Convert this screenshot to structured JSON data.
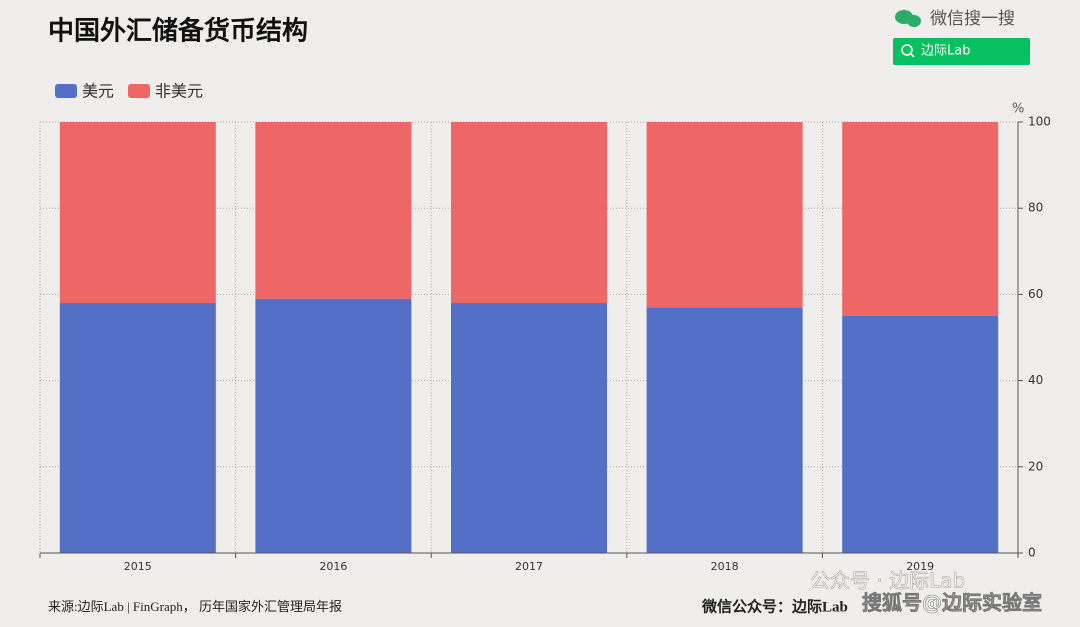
{
  "chart_data": {
    "type": "bar",
    "stacked": true,
    "title": "中国外汇储备货币结构",
    "categories": [
      "2015",
      "2016",
      "2017",
      "2018",
      "2019"
    ],
    "series": [
      {
        "name": "美元",
        "color": "#5470c6",
        "values": [
          58,
          59,
          58,
          57,
          55
        ]
      },
      {
        "name": "非美元",
        "color": "#ee6666",
        "values": [
          42,
          41,
          42,
          43,
          45
        ]
      }
    ],
    "y_unit": "%",
    "ylim": [
      0,
      100
    ],
    "yticks": [
      0,
      20,
      40,
      60,
      80,
      100
    ],
    "grid": true,
    "legend": "top-left"
  },
  "header": {
    "search_text": "微信搜一搜",
    "search_button": "边际Lab"
  },
  "footer": {
    "source": "来源:边际Lab | FinGraph， 历年国家外汇管理局年报",
    "account": "微信公众号：边际Lab"
  },
  "watermarks": [
    "公众号 · 边际Lab",
    "搜狐号@边际实验室"
  ]
}
